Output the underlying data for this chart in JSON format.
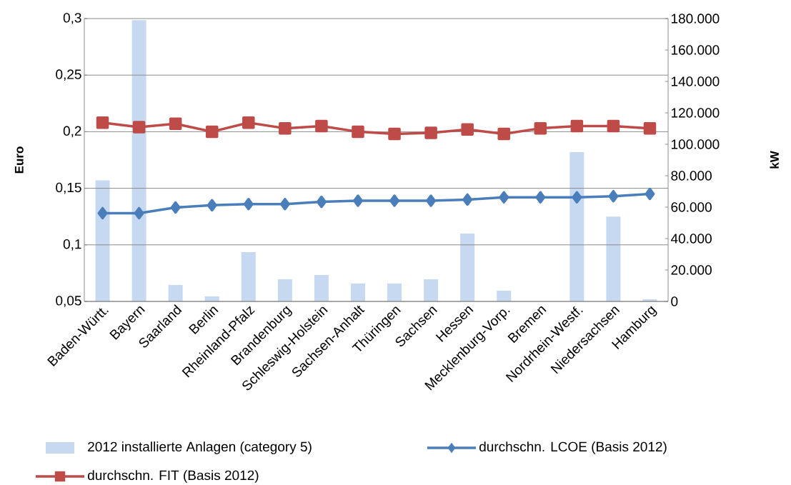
{
  "chart_data": {
    "type": "bar",
    "ylabel": "Euro",
    "y2label": "kW",
    "categories": [
      "Baden-Württ.",
      "Bayern",
      "Saarland",
      "Berlin",
      "Rheinland-Pfalz",
      "Brandenburg",
      "Schleswig-Holstein",
      "Sachsen-Anhalt",
      "Thüringen",
      "Sachsen",
      "Hessen",
      "Mecklenburg-Vorp.",
      "Bremen",
      "Nordrhein-Westf.",
      "Niedersachsen",
      "Hamburg"
    ],
    "series": [
      {
        "name": "2012 installierte Anlagen (category 5)",
        "axis": "y2",
        "color": "#c6d9f1",
        "values": [
          77000,
          179000,
          10500,
          3200,
          31400,
          14100,
          16800,
          11400,
          11400,
          14100,
          43200,
          6800,
          null,
          95000,
          54000,
          1400
        ]
      },
      {
        "name": "durchschn. LCOE (Basis 2012)",
        "type": "line",
        "marker": "diamond",
        "color": "#4a7ebb",
        "values": [
          0.128,
          0.128,
          0.133,
          0.135,
          0.136,
          0.136,
          0.138,
          0.139,
          0.139,
          0.139,
          0.14,
          0.142,
          0.142,
          0.142,
          0.143,
          0.145
        ]
      },
      {
        "name": "durchschn. FIT (Basis 2012)",
        "type": "line",
        "marker": "square",
        "color": "#be4b48",
        "values": [
          0.208,
          0.204,
          0.207,
          0.2,
          0.208,
          0.203,
          0.205,
          0.2,
          0.198,
          0.199,
          0.202,
          0.198,
          0.203,
          0.205,
          0.205,
          0.203
        ]
      }
    ],
    "ylim": [
      0.05,
      0.3
    ],
    "yticks": [
      {
        "value": 0.05,
        "label": "0,05"
      },
      {
        "value": 0.1,
        "label": "0,1"
      },
      {
        "value": 0.15,
        "label": "0,15"
      },
      {
        "value": 0.2,
        "label": "0,2"
      },
      {
        "value": 0.25,
        "label": "0,25"
      },
      {
        "value": 0.3,
        "label": "0,3"
      }
    ],
    "y2lim": [
      0,
      180000
    ],
    "y2ticks": [
      0,
      {
        "value": 20000,
        "label": "20.000"
      },
      {
        "value": 40000,
        "label": "40.000"
      },
      {
        "value": 60000,
        "label": "60.000"
      },
      {
        "value": 80000,
        "label": "80.000"
      },
      {
        "value": 100000,
        "label": "100.000"
      },
      {
        "value": 120000,
        "label": "120.000"
      },
      {
        "value": 140000,
        "label": "140.000"
      },
      {
        "value": 160000,
        "label": "160.000"
      },
      {
        "value": 180000,
        "label": "180.000"
      }
    ],
    "grid": "y",
    "legend": "bottom"
  }
}
